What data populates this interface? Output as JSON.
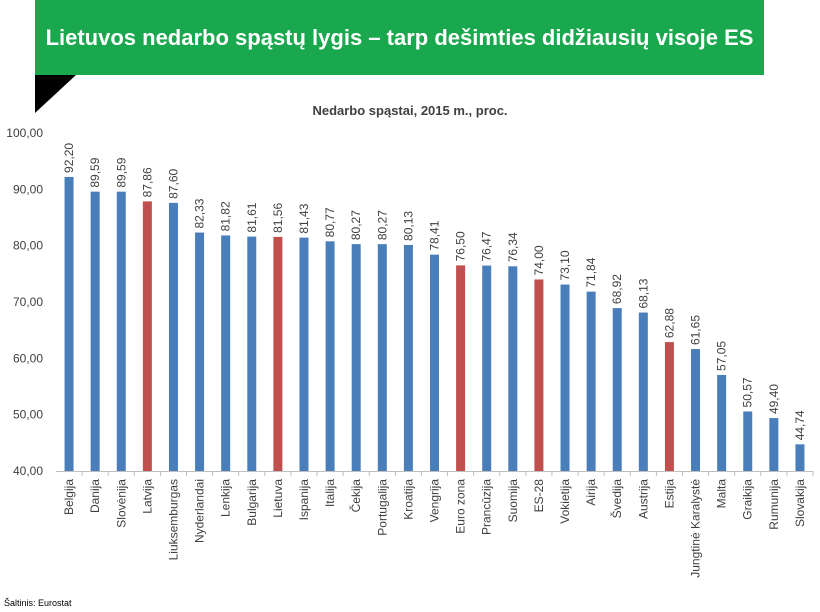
{
  "header": {
    "title": "Lietuvos nedarbo spąstų lygis – tarp dešimties didžiausių visoje ES"
  },
  "source": "Šaltinis: Eurostat",
  "colors": {
    "banner": "#1aa84e",
    "bar_default": "#4a7ebb",
    "bar_highlight": "#c0504d"
  },
  "chart_data": {
    "type": "bar",
    "title": "Nedarbo spąstai, 2015 m., proc.",
    "xlabel": "",
    "ylabel": "",
    "ylim": [
      40,
      100
    ],
    "yticks": [
      "40,00",
      "50,00",
      "60,00",
      "70,00",
      "80,00",
      "90,00",
      "100,00"
    ],
    "grid": false,
    "legend": "none",
    "categories": [
      "Belgija",
      "Danija",
      "Slovėnija",
      "Latvija",
      "Liuksemburgas",
      "Nyderlandai",
      "Lenkija",
      "Bulgarija",
      "Lietuva",
      "Ispanija",
      "Italija",
      "Čekija",
      "Portugalija",
      "Kroatija",
      "Vengrija",
      "Euro zona",
      "Prancūzija",
      "Suomija",
      "ES-28",
      "Vokietija",
      "Airija",
      "Švedija",
      "Austrija",
      "Estija",
      "Jungtinė Karalystė",
      "Malta",
      "Graikija",
      "Rumunija",
      "Slovakija"
    ],
    "values": [
      92.2,
      89.59,
      89.59,
      87.86,
      87.6,
      82.33,
      81.82,
      81.61,
      81.56,
      81.43,
      80.77,
      80.27,
      80.27,
      80.13,
      78.41,
      76.5,
      76.47,
      76.34,
      74.0,
      73.1,
      71.84,
      68.92,
      68.13,
      62.88,
      61.65,
      57.05,
      50.57,
      49.4,
      44.74
    ],
    "value_labels": [
      "92,20",
      "89,59",
      "89,59",
      "87,86",
      "87,60",
      "82,33",
      "81,82",
      "81,61",
      "81,56",
      "81,43",
      "80,77",
      "80,27",
      "80,27",
      "80,13",
      "78,41",
      "76,50",
      "76,47",
      "76,34",
      "74,00",
      "73,10",
      "71,84",
      "68,92",
      "68,13",
      "62,88",
      "61,65",
      "57,05",
      "50,57",
      "49,40",
      "44,74"
    ],
    "highlighted": [
      "Latvija",
      "Lietuva",
      "Euro zona",
      "ES-28",
      "Estija"
    ]
  }
}
